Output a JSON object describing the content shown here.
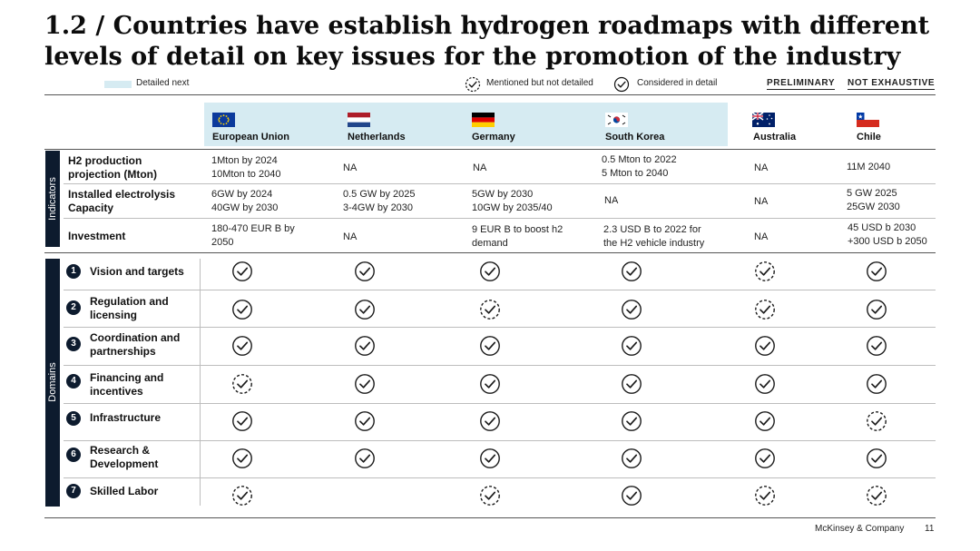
{
  "title": "1.2 / Countries have establish hydrogen roadmaps with different levels of detail on key issues for the promotion of the industry",
  "legend": {
    "detailed_next": "Detailed next",
    "mentioned": "Mentioned but not detailed",
    "considered": "Considered in detail",
    "tag1": "PRELIMINARY",
    "tag2": "NOT EXHAUSTIVE"
  },
  "colors": {
    "navy": "#0d1b2e",
    "highlight": "#d6ebf2"
  },
  "countries": [
    {
      "name": "European Union",
      "flag": "eu-flag-icon"
    },
    {
      "name": "Netherlands",
      "flag": "netherlands-flag-icon"
    },
    {
      "name": "Germany",
      "flag": "germany-flag-icon"
    },
    {
      "name": "South Korea",
      "flag": "south-korea-flag-icon"
    },
    {
      "name": "Australia",
      "flag": "australia-flag-icon"
    },
    {
      "name": "Chile",
      "flag": "chile-flag-icon"
    }
  ],
  "indicators_label": "Indicators",
  "domains_label": "Domains",
  "indicators": [
    {
      "label": "H2 production\nprojection (Mton)",
      "values": [
        "1Mton by 2024\n10Mton to 2040",
        "NA",
        "NA",
        "0.5 Mton to 2022\n5 Mton to 2040",
        "NA",
        "11M 2040"
      ]
    },
    {
      "label": "Installed electrolysis\nCapacity",
      "values": [
        "6GW by 2024\n40GW by 2030",
        "0.5 GW by 2025\n3-4GW by 2030",
        "5GW by 2030\n10GW by 2035/40",
        "NA",
        "NA",
        "5 GW 2025\n25GW 2030"
      ]
    },
    {
      "label": "Investment",
      "values": [
        "180-470 EUR B by\n2050",
        "NA",
        "9 EUR B to boost h2\ndemand",
        "2.3 USD B to 2022 for\nthe H2 vehicle industry",
        "NA",
        "45 USD b 2030\n+300 USD b 2050"
      ]
    }
  ],
  "domains": [
    {
      "num": "1",
      "label": "Vision and targets",
      "status": [
        "detailed",
        "detailed",
        "detailed",
        "detailed",
        "mentioned",
        "detailed"
      ]
    },
    {
      "num": "2",
      "label": "Regulation and\nlicensing",
      "status": [
        "detailed",
        "detailed",
        "mentioned",
        "detailed",
        "mentioned",
        "detailed"
      ]
    },
    {
      "num": "3",
      "label": "Coordination and\npartnerships",
      "status": [
        "detailed",
        "detailed",
        "detailed",
        "detailed",
        "detailed",
        "detailed"
      ]
    },
    {
      "num": "4",
      "label": "Financing and\nincentives",
      "status": [
        "mentioned",
        "detailed",
        "detailed",
        "detailed",
        "detailed",
        "detailed"
      ]
    },
    {
      "num": "5",
      "label": "Infrastructure",
      "status": [
        "detailed",
        "detailed",
        "detailed",
        "detailed",
        "detailed",
        "mentioned"
      ]
    },
    {
      "num": "6",
      "label": "Research &\nDevelopment",
      "status": [
        "detailed",
        "detailed",
        "detailed",
        "detailed",
        "detailed",
        "detailed"
      ]
    },
    {
      "num": "7",
      "label": "Skilled Labor",
      "status": [
        "mentioned",
        "none",
        "mentioned",
        "detailed",
        "mentioned",
        "mentioned"
      ]
    }
  ],
  "footer": {
    "company": "McKinsey & Company",
    "page": "11"
  }
}
